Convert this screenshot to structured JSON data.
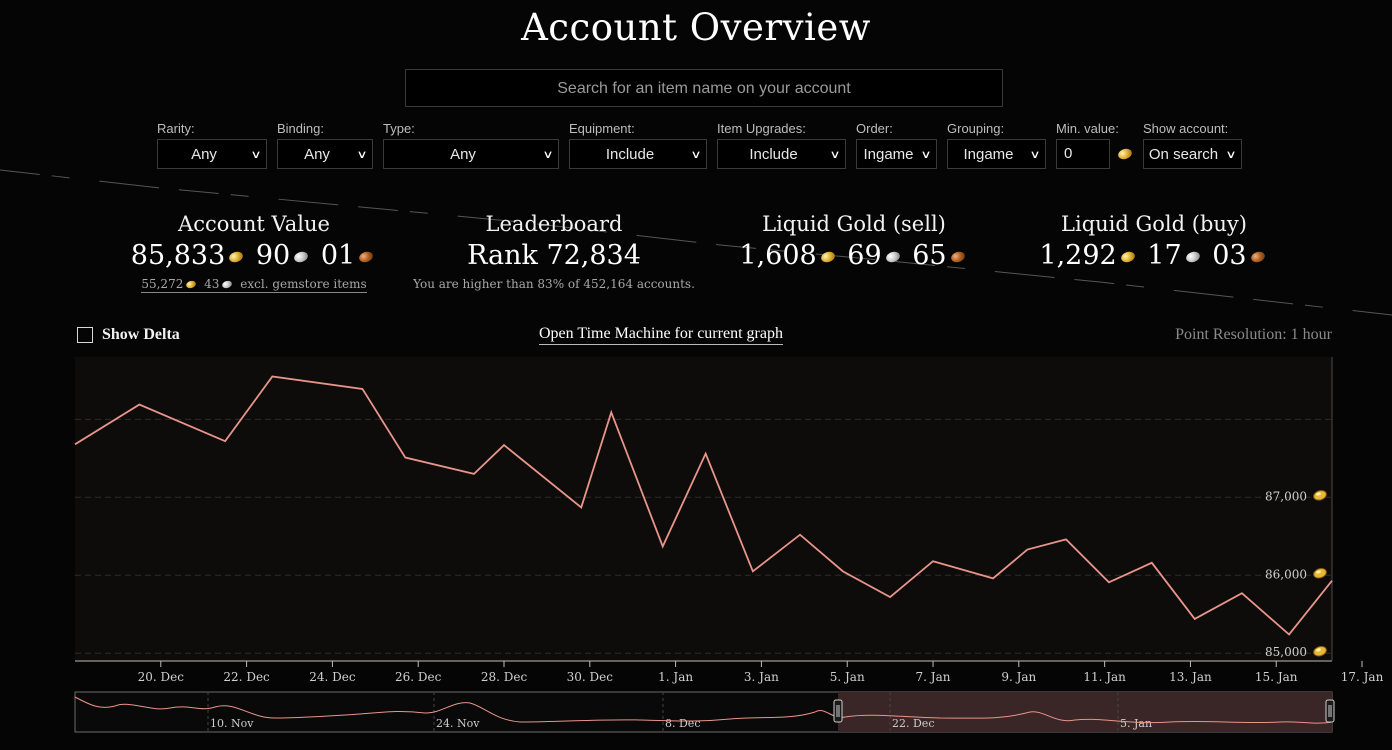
{
  "page": {
    "title": "Account Overview"
  },
  "search": {
    "placeholder": "Search for an item name on your account"
  },
  "filters": {
    "rarity": {
      "label": "Rarity:",
      "value": "Any"
    },
    "binding": {
      "label": "Binding:",
      "value": "Any"
    },
    "type": {
      "label": "Type:",
      "value": "Any"
    },
    "equipment": {
      "label": "Equipment:",
      "value": "Include"
    },
    "upgrades": {
      "label": "Item Upgrades:",
      "value": "Include"
    },
    "order": {
      "label": "Order:",
      "value": "Ingame"
    },
    "grouping": {
      "label": "Grouping:",
      "value": "Ingame"
    },
    "min_value": {
      "label": "Min. value:",
      "value": "0"
    },
    "show_account": {
      "label": "Show account:",
      "value": "On search"
    }
  },
  "stats": {
    "account_value": {
      "title": "Account Value",
      "gold": "85,833",
      "silver": "90",
      "copper": "01",
      "sub_gold": "55,272",
      "sub_silver": "43",
      "sub_text": "excl. gemstore items"
    },
    "leaderboard": {
      "title": "Leaderboard",
      "rank": "Rank 72,834",
      "sub": "You are higher than 83% of 452,164 accounts."
    },
    "liquid_sell": {
      "title": "Liquid Gold (sell)",
      "gold": "1,608",
      "silver": "69",
      "copper": "65"
    },
    "liquid_buy": {
      "title": "Liquid Gold (buy)",
      "gold": "1,292",
      "silver": "17",
      "copper": "03"
    }
  },
  "controls": {
    "show_delta": "Show Delta",
    "time_machine": "Open Time Machine for current graph",
    "resolution": "Point Resolution: 1 hour"
  },
  "colors": {
    "line": "#e8958a",
    "bg": "#050505",
    "navigator_fill": "#3a2626"
  },
  "chart_data": {
    "type": "line",
    "y_label_icon": "gold-coin-icon",
    "x_ticks": [
      "20. Dec",
      "22. Dec",
      "24. Dec",
      "26. Dec",
      "28. Dec",
      "30. Dec",
      "1. Jan",
      "3. Jan",
      "5. Jan",
      "7. Jan",
      "9. Jan",
      "11. Jan",
      "13. Jan",
      "15. Jan",
      "17. Jan"
    ],
    "y_ticks": [
      "85,000",
      "86,000",
      "87,000"
    ],
    "ylim": [
      84900,
      88800
    ],
    "series": [
      {
        "x": [
          18.0,
          19.5,
          21.5,
          22.6,
          24.7,
          25.7,
          27.3,
          28.0,
          29.8,
          30.5,
          31.7,
          32.7,
          33.8,
          34.9,
          35.9,
          37.0,
          38.0,
          39.4,
          40.2,
          41.1,
          42.1,
          43.1,
          44.1,
          45.2,
          46.3,
          47.3
        ],
        "y": [
          87680,
          88190,
          87720,
          88550,
          88390,
          87510,
          87300,
          87670,
          86870,
          88090,
          86370,
          87560,
          86050,
          86520,
          86050,
          85720,
          86180,
          85960,
          86330,
          86460,
          85910,
          86160,
          85440,
          85770,
          85240,
          85930
        ]
      }
    ],
    "navigator": {
      "x_ticks": [
        "10. Nov",
        "24. Nov",
        "8. Dec",
        "22. Dec",
        "5. Jan"
      ],
      "selected_range": [
        "18. Dec",
        "18. Jan"
      ]
    }
  }
}
